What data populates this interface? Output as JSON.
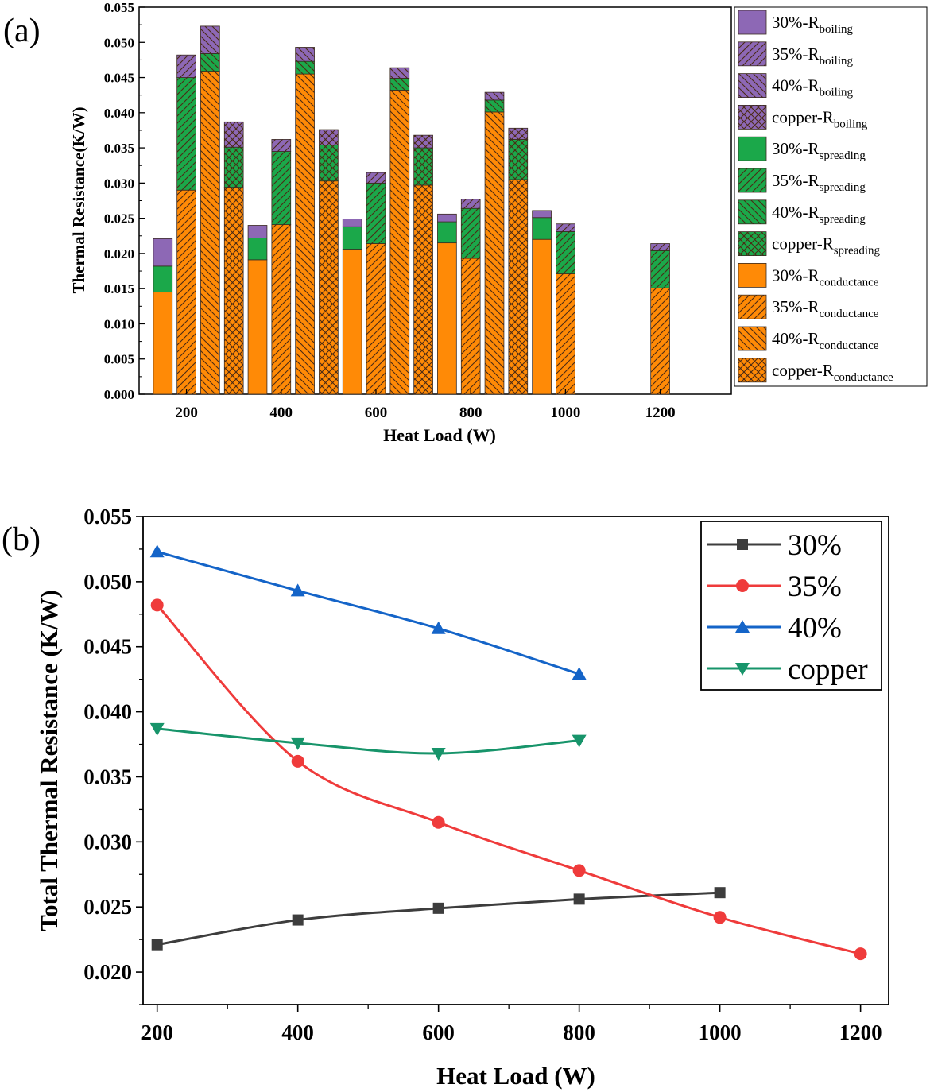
{
  "colors": {
    "boiling": "#8d68b5",
    "spreading": "#1ba84a",
    "conductance": "#ff8a06",
    "hatch": "#4b2a14",
    "s30": "#3d3d3d",
    "s35": "#ef3b3b",
    "s40": "#1464c8",
    "scopper": "#17946a"
  },
  "chart_data": [
    {
      "type": "bar",
      "panel_label": "(a)",
      "xlabel": "Heat Load (W)",
      "ylabel": "Thermal Resistance(K/W)",
      "ylim": [
        0,
        0.055
      ],
      "yticks": [
        "0.000",
        "0.005",
        "0.010",
        "0.015",
        "0.020",
        "0.025",
        "0.030",
        "0.035",
        "0.040",
        "0.045",
        "0.050",
        "0.055"
      ],
      "xlim": [
        100,
        1350
      ],
      "xticks": [
        {
          "value": 200,
          "label": "200"
        },
        {
          "value": 400,
          "label": "400"
        },
        {
          "value": 600,
          "label": "600"
        },
        {
          "value": 800,
          "label": "800"
        },
        {
          "value": 1000,
          "label": "1000"
        },
        {
          "value": 1200,
          "label": "1200"
        }
      ],
      "bar_width": 40,
      "legend": {
        "location": "right",
        "entries": [
          {
            "component": "boiling",
            "pattern": "solid",
            "base": "30%-R",
            "sub": "boiling"
          },
          {
            "component": "boiling",
            "pattern": "fwd",
            "base": "35%-R",
            "sub": "boiling"
          },
          {
            "component": "boiling",
            "pattern": "back",
            "base": "40%-R",
            "sub": "boiling"
          },
          {
            "component": "boiling",
            "pattern": "cross",
            "base": "copper-R",
            "sub": "boiling"
          },
          {
            "component": "spreading",
            "pattern": "solid",
            "base": "30%-R",
            "sub": "spreading"
          },
          {
            "component": "spreading",
            "pattern": "fwd",
            "base": "35%-R",
            "sub": "spreading"
          },
          {
            "component": "spreading",
            "pattern": "back",
            "base": "40%-R",
            "sub": "spreading"
          },
          {
            "component": "spreading",
            "pattern": "cross",
            "base": "copper-R",
            "sub": "spreading"
          },
          {
            "component": "conductance",
            "pattern": "solid",
            "base": "30%-R",
            "sub": "conductance"
          },
          {
            "component": "conductance",
            "pattern": "fwd",
            "base": "35%-R",
            "sub": "conductance"
          },
          {
            "component": "conductance",
            "pattern": "back",
            "base": "40%-R",
            "sub": "conductance"
          },
          {
            "component": "conductance",
            "pattern": "cross",
            "base": "copper-R",
            "sub": "conductance"
          }
        ]
      },
      "bars": [
        {
          "series": "30%",
          "pattern": "solid",
          "x": 150,
          "conductance": 0.0145,
          "spreading": 0.0037,
          "boiling": 0.0039
        },
        {
          "series": "35%",
          "pattern": "fwd",
          "x": 200,
          "conductance": 0.029,
          "spreading": 0.016,
          "boiling": 0.0032
        },
        {
          "series": "40%",
          "pattern": "back",
          "x": 250,
          "conductance": 0.0459,
          "spreading": 0.0025,
          "boiling": 0.0039
        },
        {
          "series": "copper",
          "pattern": "cross",
          "x": 300,
          "conductance": 0.0294,
          "spreading": 0.0057,
          "boiling": 0.0036
        },
        {
          "series": "30%",
          "pattern": "solid",
          "x": 350,
          "conductance": 0.0191,
          "spreading": 0.0031,
          "boiling": 0.0018
        },
        {
          "series": "35%",
          "pattern": "fwd",
          "x": 400,
          "conductance": 0.0241,
          "spreading": 0.0104,
          "boiling": 0.0017
        },
        {
          "series": "40%",
          "pattern": "back",
          "x": 450,
          "conductance": 0.0455,
          "spreading": 0.0018,
          "boiling": 0.002
        },
        {
          "series": "copper",
          "pattern": "cross",
          "x": 500,
          "conductance": 0.0303,
          "spreading": 0.0051,
          "boiling": 0.0022
        },
        {
          "series": "30%",
          "pattern": "solid",
          "x": 550,
          "conductance": 0.0206,
          "spreading": 0.0032,
          "boiling": 0.0011
        },
        {
          "series": "35%",
          "pattern": "fwd",
          "x": 600,
          "conductance": 0.0214,
          "spreading": 0.0086,
          "boiling": 0.0015
        },
        {
          "series": "40%",
          "pattern": "back",
          "x": 650,
          "conductance": 0.0432,
          "spreading": 0.0017,
          "boiling": 0.0015
        },
        {
          "series": "copper",
          "pattern": "cross",
          "x": 700,
          "conductance": 0.0297,
          "spreading": 0.0053,
          "boiling": 0.0018
        },
        {
          "series": "30%",
          "pattern": "solid",
          "x": 750,
          "conductance": 0.0215,
          "spreading": 0.003,
          "boiling": 0.0011
        },
        {
          "series": "35%",
          "pattern": "fwd",
          "x": 800,
          "conductance": 0.0193,
          "spreading": 0.0071,
          "boiling": 0.0013
        },
        {
          "series": "40%",
          "pattern": "back",
          "x": 850,
          "conductance": 0.0401,
          "spreading": 0.0017,
          "boiling": 0.0011
        },
        {
          "series": "copper",
          "pattern": "cross",
          "x": 900,
          "conductance": 0.0305,
          "spreading": 0.0057,
          "boiling": 0.0016
        },
        {
          "series": "30%",
          "pattern": "solid",
          "x": 950,
          "conductance": 0.022,
          "spreading": 0.0031,
          "boiling": 0.001
        },
        {
          "series": "35%",
          "pattern": "fwd",
          "x": 1000,
          "conductance": 0.0171,
          "spreading": 0.006,
          "boiling": 0.0011
        },
        {
          "series": "35%",
          "pattern": "fwd",
          "x": 1200,
          "conductance": 0.0151,
          "spreading": 0.0053,
          "boiling": 0.001
        }
      ]
    },
    {
      "type": "line",
      "panel_label": "(b)",
      "xlabel": "Heat Load (W)",
      "ylabel": "Total Thermal Resistance (K/W)",
      "xlim": [
        180,
        1240
      ],
      "ylim": [
        0.0175,
        0.055
      ],
      "xticks": [
        "200",
        "400",
        "600",
        "800",
        "1000",
        "1200"
      ],
      "yticks": [
        "0.020",
        "0.025",
        "0.030",
        "0.035",
        "0.040",
        "0.045",
        "0.050",
        "0.055"
      ],
      "legend": {
        "location": "top-right"
      },
      "series": [
        {
          "name": "30%",
          "color_key": "s30",
          "marker": "square",
          "x": [
            200,
            400,
            600,
            800,
            1000
          ],
          "values": [
            0.0221,
            0.024,
            0.0249,
            0.0256,
            0.0261
          ]
        },
        {
          "name": "35%",
          "color_key": "s35",
          "marker": "circle",
          "x": [
            200,
            400,
            600,
            800,
            1000,
            1200
          ],
          "values": [
            0.0482,
            0.0362,
            0.0315,
            0.0278,
            0.0242,
            0.0214
          ]
        },
        {
          "name": "40%",
          "color_key": "s40",
          "marker": "triangle-up",
          "x": [
            200,
            400,
            600,
            800
          ],
          "values": [
            0.0523,
            0.0493,
            0.0464,
            0.0429
          ]
        },
        {
          "name": "copper",
          "color_key": "scopper",
          "marker": "triangle-down",
          "x": [
            200,
            400,
            600,
            800
          ],
          "values": [
            0.0387,
            0.0376,
            0.0368,
            0.0378
          ]
        }
      ]
    }
  ]
}
